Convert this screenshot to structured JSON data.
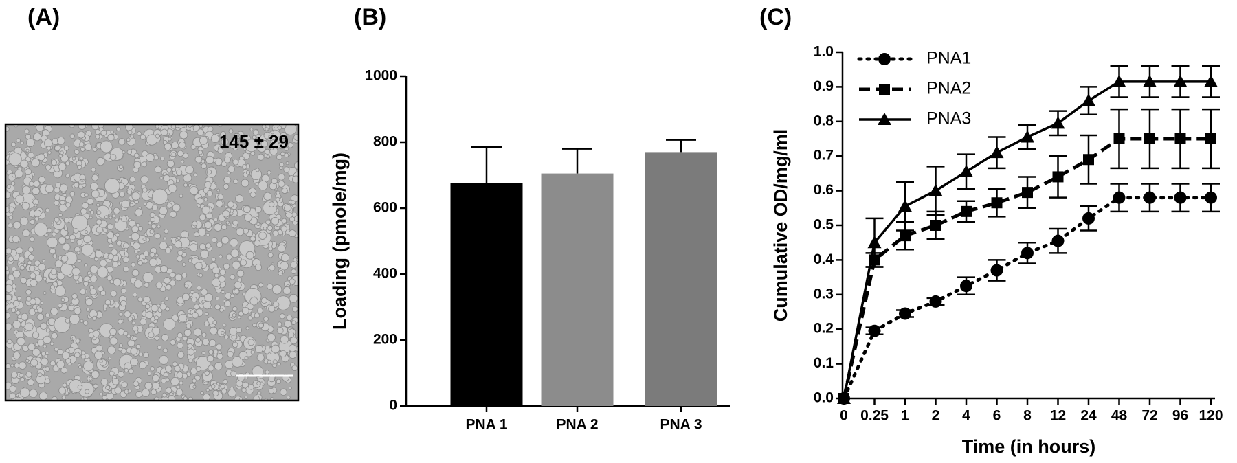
{
  "panel_labels": [
    "(A)",
    "(B)",
    "(C)"
  ],
  "micrograph": {
    "annotation": "145 ± 29"
  },
  "chart_data": [
    {
      "type": "bar",
      "ylabel": "Loading (pmole/mg)",
      "categories": [
        "PNA 1",
        "PNA 2",
        "PNA 3"
      ],
      "values": [
        675,
        705,
        770
      ],
      "errors": [
        110,
        75,
        37
      ],
      "colors": [
        "#000000",
        "#8c8c8c",
        "#7b7b7b"
      ],
      "ylim": [
        0,
        1000
      ],
      "yticks": [
        0,
        200,
        400,
        600,
        800,
        1000
      ]
    },
    {
      "type": "line",
      "xlabel": "Time (in hours)",
      "ylabel": "Cumulative OD/mg/ml",
      "categories": [
        "0",
        "0.25",
        "1",
        "2",
        "4",
        "6",
        "8",
        "12",
        "24",
        "48",
        "72",
        "96",
        "120"
      ],
      "ylim": [
        0,
        1
      ],
      "yticks": [
        {
          "value": 0,
          "label": "0.0"
        },
        0.1,
        0.2,
        0.3,
        0.4,
        0.5,
        0.6,
        0.7,
        0.8,
        0.9,
        {
          "value": 1,
          "label": "1.0"
        }
      ],
      "legend": "upper left",
      "series": [
        {
          "name": "PNA1",
          "color": "#000000",
          "dash": "dotted",
          "marker": "circle",
          "values": [
            0,
            0.195,
            0.245,
            0.28,
            0.325,
            0.37,
            0.42,
            0.455,
            0.52,
            0.58,
            0.58,
            0.58,
            0.58
          ],
          "errors": [
            0,
            0.01,
            0.01,
            0.01,
            0.025,
            0.03,
            0.03,
            0.035,
            0.035,
            0.04,
            0.04,
            0.04,
            0.04
          ]
        },
        {
          "name": "PNA2",
          "color": "#000000",
          "dash": "dashed",
          "marker": "square",
          "values": [
            0,
            0.4,
            0.47,
            0.5,
            0.54,
            0.565,
            0.595,
            0.64,
            0.69,
            0.75,
            0.75,
            0.75,
            0.75
          ],
          "errors": [
            0,
            0.02,
            0.04,
            0.04,
            0.03,
            0.04,
            0.045,
            0.06,
            0.07,
            0.085,
            0.085,
            0.085,
            0.085
          ]
        },
        {
          "name": "PNA3",
          "color": "#000000",
          "dash": "solid",
          "marker": "triangle",
          "values": [
            0,
            0.45,
            0.555,
            0.6,
            0.655,
            0.71,
            0.755,
            0.795,
            0.86,
            0.915,
            0.915,
            0.915,
            0.915
          ],
          "errors": [
            0,
            0.07,
            0.07,
            0.07,
            0.05,
            0.045,
            0.035,
            0.035,
            0.04,
            0.045,
            0.045,
            0.045,
            0.045
          ]
        }
      ]
    }
  ]
}
